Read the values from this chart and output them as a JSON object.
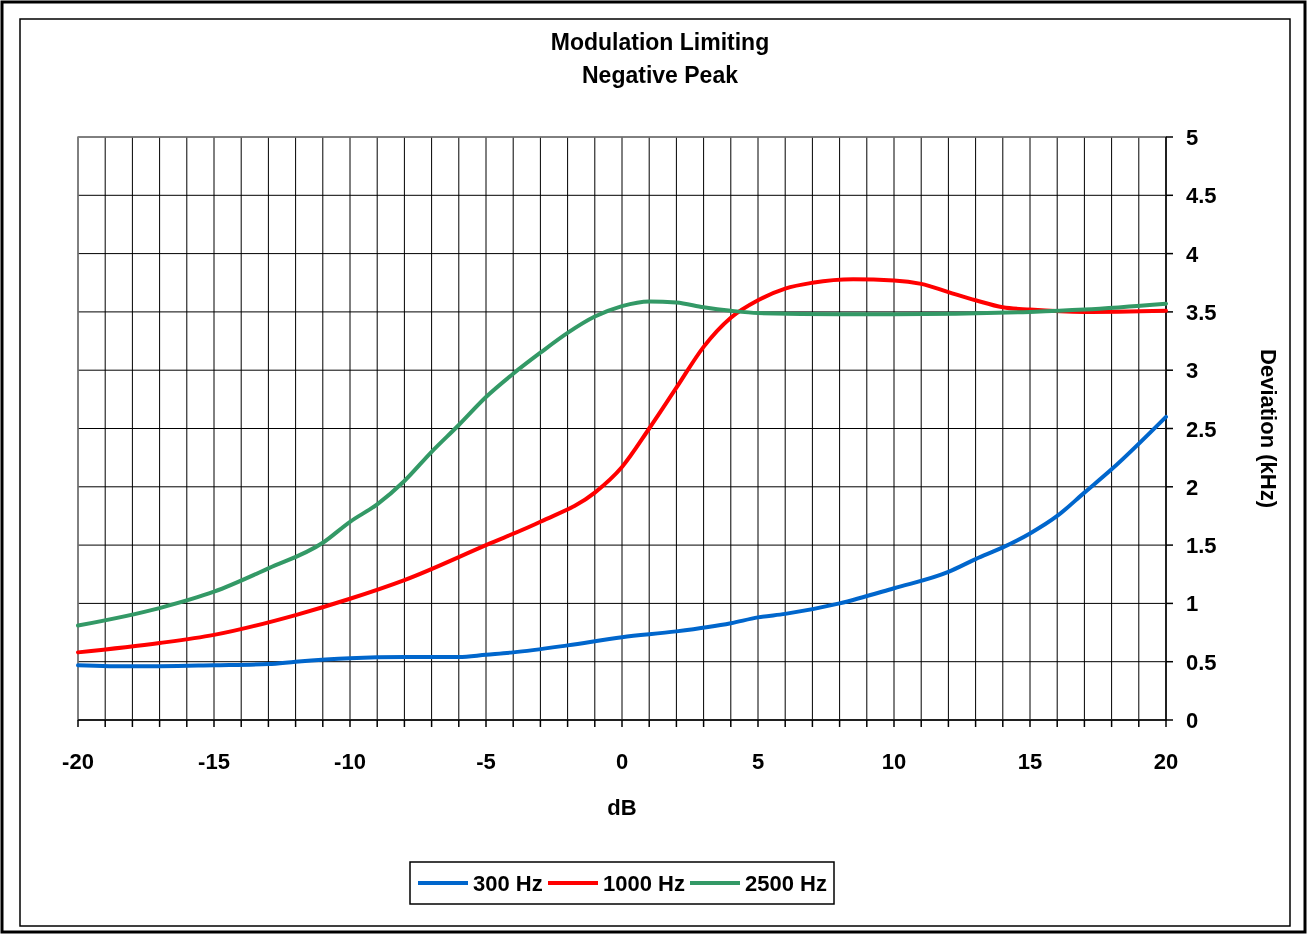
{
  "chart_data": {
    "type": "line",
    "title": "Modulation Limiting",
    "subtitle": "Negative Peak",
    "xlabel": "dB",
    "ylabel": "Deviation (kHz)",
    "xlim": [
      -20,
      20
    ],
    "ylim": [
      0,
      5
    ],
    "xticks": [
      -20,
      {
        "value": -19,
        "label": null
      },
      {
        "value": -18,
        "label": null
      },
      {
        "value": -17,
        "label": null
      },
      {
        "value": -16,
        "label": null
      },
      -15,
      {
        "value": -14,
        "label": null
      },
      {
        "value": -13,
        "label": null
      },
      {
        "value": -12,
        "label": null
      },
      {
        "value": -11,
        "label": null
      },
      -10,
      {
        "value": -9,
        "label": null
      },
      {
        "value": -8,
        "label": null
      },
      {
        "value": -7,
        "label": null
      },
      {
        "value": -6,
        "label": null
      },
      -5,
      {
        "value": -4,
        "label": null
      },
      {
        "value": -3,
        "label": null
      },
      {
        "value": -2,
        "label": null
      },
      {
        "value": -1,
        "label": null
      },
      0,
      {
        "value": 1,
        "label": null
      },
      {
        "value": 2,
        "label": null
      },
      {
        "value": 3,
        "label": null
      },
      {
        "value": 4,
        "label": null
      },
      5,
      {
        "value": 6,
        "label": null
      },
      {
        "value": 7,
        "label": null
      },
      {
        "value": 8,
        "label": null
      },
      {
        "value": 9,
        "label": null
      },
      10,
      {
        "value": 11,
        "label": null
      },
      {
        "value": 12,
        "label": null
      },
      {
        "value": 13,
        "label": null
      },
      {
        "value": 14,
        "label": null
      },
      15,
      {
        "value": 16,
        "label": null
      },
      {
        "value": 17,
        "label": null
      },
      {
        "value": 18,
        "label": null
      },
      {
        "value": 19,
        "label": null
      },
      20
    ],
    "yticks": [
      0,
      0.5,
      1,
      1.5,
      2,
      2.5,
      3,
      3.5,
      4,
      4.5,
      5
    ],
    "grid": true,
    "legend": "bottom",
    "line_style": "solid",
    "marker": "none",
    "series": [
      {
        "name": "300 Hz",
        "color": "#0066cc",
        "x": [
          -20,
          -18,
          -15,
          -13,
          -12,
          -10,
          -8,
          -6,
          -5,
          -4,
          -2,
          0,
          2,
          4,
          5,
          6,
          8,
          10,
          12,
          13,
          14,
          15,
          16,
          17,
          18,
          20
        ],
        "values": [
          0.47,
          0.46,
          0.47,
          0.48,
          0.5,
          0.53,
          0.54,
          0.54,
          0.56,
          0.58,
          0.64,
          0.71,
          0.76,
          0.83,
          0.88,
          0.91,
          1.0,
          1.13,
          1.27,
          1.38,
          1.48,
          1.6,
          1.75,
          1.95,
          2.15,
          2.6
        ]
      },
      {
        "name": "1000 Hz",
        "color": "#ff0000",
        "x": [
          -20,
          -17,
          -15,
          -12,
          -10,
          -8,
          -5,
          -3,
          -1,
          0,
          1,
          2,
          3,
          4,
          5,
          6,
          7,
          8.5,
          10,
          11,
          12,
          13,
          14,
          15,
          17,
          20
        ],
        "values": [
          0.58,
          0.66,
          0.73,
          0.9,
          1.04,
          1.2,
          1.5,
          1.7,
          1.95,
          2.17,
          2.5,
          2.85,
          3.2,
          3.45,
          3.6,
          3.7,
          3.75,
          3.78,
          3.77,
          3.74,
          3.67,
          3.6,
          3.54,
          3.52,
          3.5,
          3.51
        ]
      },
      {
        "name": "2500 Hz",
        "color": "#339966",
        "x": [
          -20,
          -17,
          -15,
          -13,
          -11,
          -10,
          -9,
          -8,
          -7,
          -6,
          -5,
          -4,
          -3,
          -2,
          -1,
          0,
          1,
          2,
          3,
          4,
          5,
          8,
          10,
          15,
          17,
          20
        ],
        "values": [
          0.81,
          0.96,
          1.1,
          1.3,
          1.52,
          1.7,
          1.85,
          2.05,
          2.3,
          2.53,
          2.77,
          2.97,
          3.15,
          3.32,
          3.46,
          3.55,
          3.59,
          3.58,
          3.54,
          3.51,
          3.49,
          3.48,
          3.48,
          3.5,
          3.52,
          3.57
        ]
      }
    ]
  }
}
